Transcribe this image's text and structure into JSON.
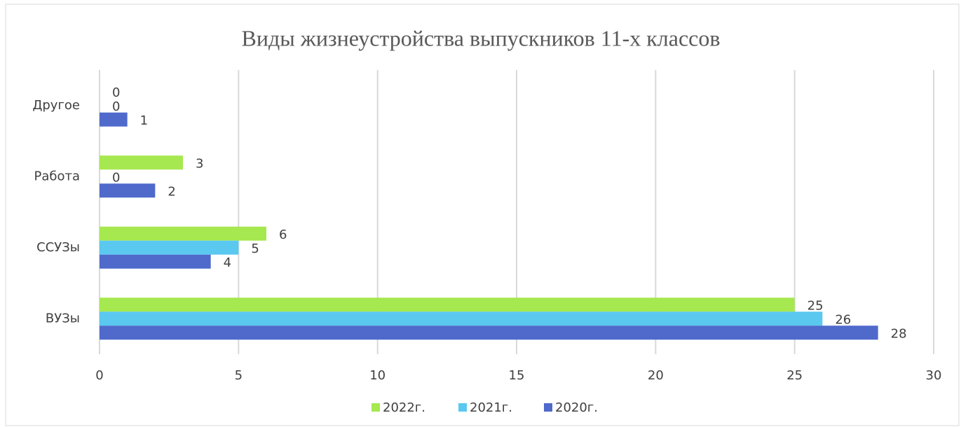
{
  "chart_data": {
    "type": "bar",
    "orientation": "horizontal",
    "title": "Виды жизнеустройства  выпускников 11-х классов",
    "categories": [
      "Другое",
      "Работа",
      "ССУЗы",
      "ВУЗы"
    ],
    "series": [
      {
        "name": "2022г.",
        "color": "#a6e84f",
        "values": [
          0,
          3,
          6,
          25
        ]
      },
      {
        "name": "2021г.",
        "color": "#5bc8f0",
        "values": [
          0,
          0,
          5,
          26
        ]
      },
      {
        "name": "2020г.",
        "color": "#4f6acb",
        "values": [
          1,
          2,
          4,
          28
        ]
      }
    ],
    "xlim": [
      0,
      30
    ],
    "xticks": [
      0,
      5,
      10,
      15,
      20,
      25,
      30
    ],
    "grid": true,
    "legend": "bottom"
  }
}
